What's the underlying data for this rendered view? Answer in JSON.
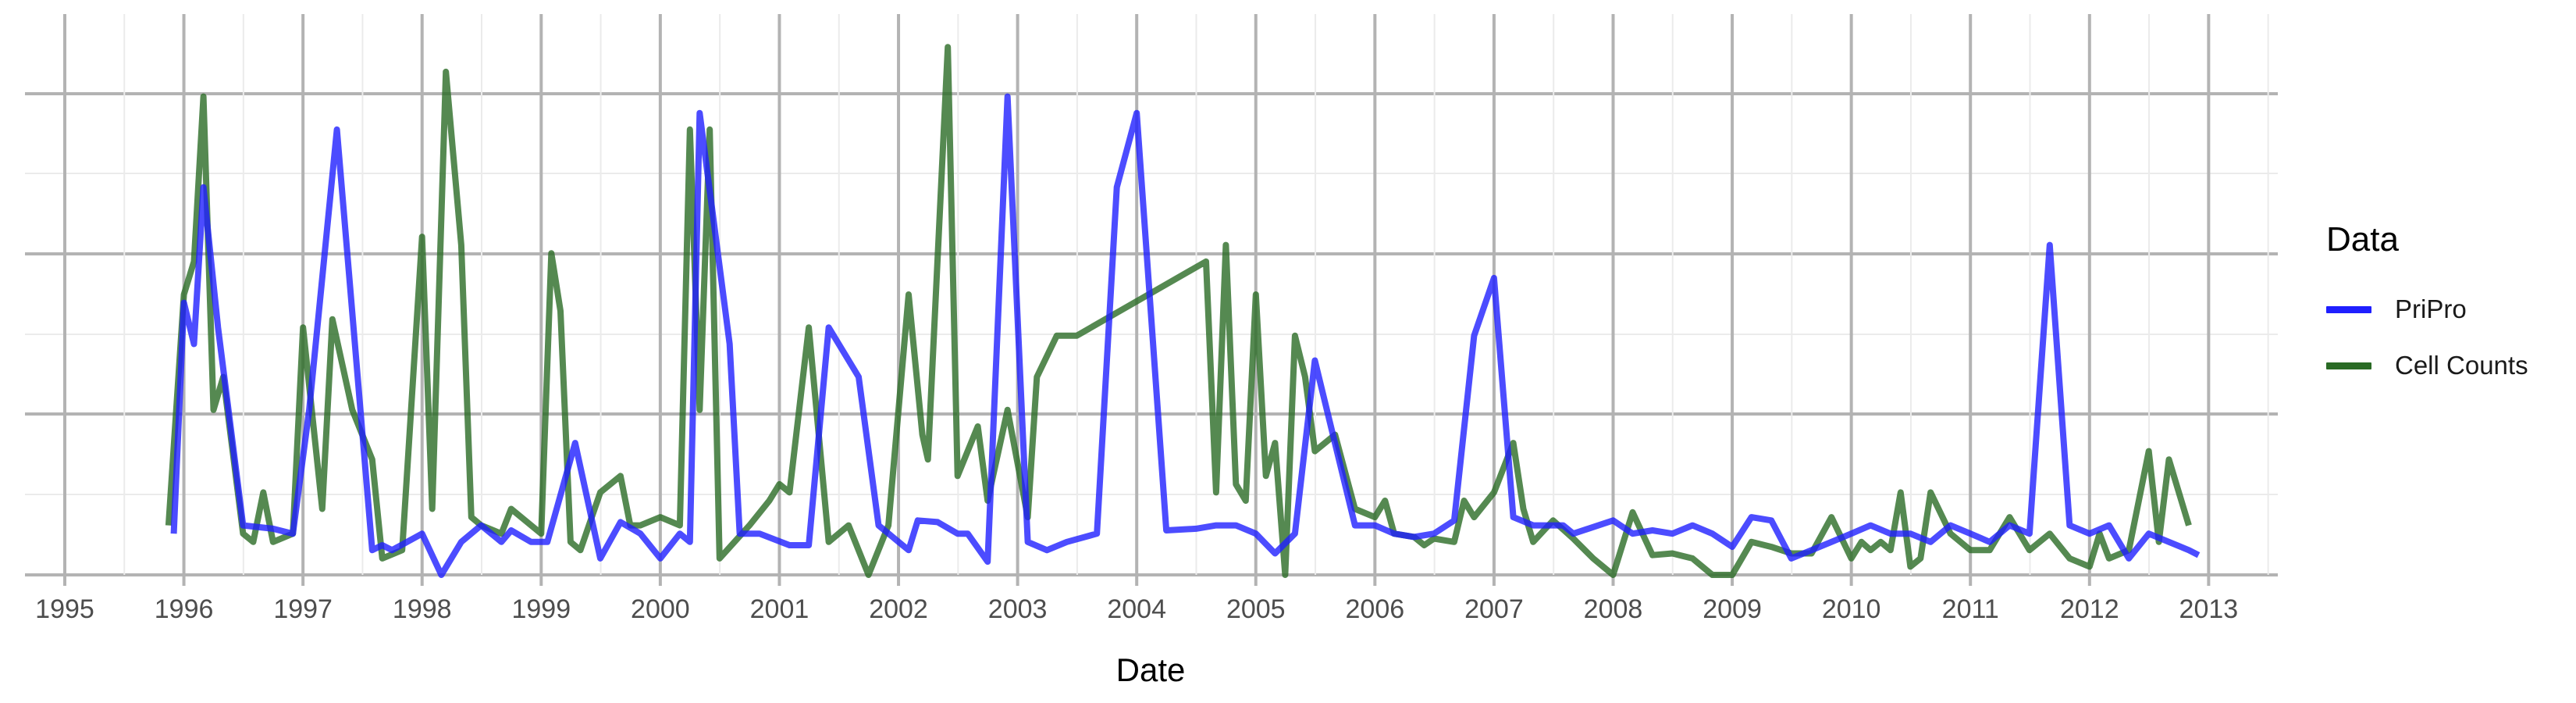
{
  "chart_data": {
    "type": "line",
    "xlabel": "Date",
    "ylabel": "",
    "x_ticks": [
      "1995",
      "1996",
      "1997",
      "1998",
      "1999",
      "2000",
      "2001",
      "2002",
      "2003",
      "2004",
      "2005",
      "2006",
      "2007",
      "2008",
      "2009",
      "2010",
      "2011",
      "2012",
      "2013"
    ],
    "xlim": [
      "1994-09-01",
      "2013-08-01"
    ],
    "ylim": [
      0,
      34
    ],
    "y_ticks_shown": false,
    "grid": true,
    "legend_title": "Data",
    "legend_placement": "right",
    "series": [
      {
        "name": "PriPro",
        "color": "#1f1fff",
        "points": [
          [
            "1995-12-01",
            2.5
          ],
          [
            "1996-01-01",
            16.5
          ],
          [
            "1996-02-01",
            14
          ],
          [
            "1996-03-01",
            23.5
          ],
          [
            "1996-04-15",
            15
          ],
          [
            "1996-07-01",
            3
          ],
          [
            "1996-10-01",
            2.8
          ],
          [
            "1996-12-01",
            2.5
          ],
          [
            "1997-01-20",
            10
          ],
          [
            "1997-04-15",
            27
          ],
          [
            "1997-08-01",
            1.5
          ],
          [
            "1997-09-01",
            1.8
          ],
          [
            "1997-10-01",
            1.5
          ],
          [
            "1998-01-01",
            2.5
          ],
          [
            "1998-03-01",
            0
          ],
          [
            "1998-05-01",
            2
          ],
          [
            "1998-07-01",
            3
          ],
          [
            "1998-09-01",
            2
          ],
          [
            "1998-10-01",
            2.7
          ],
          [
            "1998-12-01",
            2
          ],
          [
            "1999-01-20",
            2
          ],
          [
            "1999-04-15",
            8
          ],
          [
            "1999-07-01",
            1
          ],
          [
            "1999-09-01",
            3.2
          ],
          [
            "1999-11-01",
            2.5
          ],
          [
            "2000-01-01",
            1
          ],
          [
            "2000-03-01",
            2.5
          ],
          [
            "2000-04-01",
            2
          ],
          [
            "2000-05-01",
            28
          ],
          [
            "2000-08-01",
            14
          ],
          [
            "2000-09-01",
            2.5
          ],
          [
            "2000-11-01",
            2.5
          ],
          [
            "2001-02-01",
            1.8
          ],
          [
            "2001-04-01",
            1.8
          ],
          [
            "2001-06-01",
            15
          ],
          [
            "2001-09-01",
            12
          ],
          [
            "2001-11-01",
            3
          ],
          [
            "2002-02-01",
            1.5
          ],
          [
            "2002-03-01",
            3.3
          ],
          [
            "2002-05-01",
            3.2
          ],
          [
            "2002-07-01",
            2.5
          ],
          [
            "2002-08-01",
            2.5
          ],
          [
            "2002-10-01",
            0.8
          ],
          [
            "2002-12-01",
            29
          ],
          [
            "2003-02-01",
            2
          ],
          [
            "2003-04-01",
            1.5
          ],
          [
            "2003-06-01",
            2
          ],
          [
            "2003-09-01",
            2.5
          ],
          [
            "2003-11-01",
            23.5
          ],
          [
            "2004-01-01",
            28
          ],
          [
            "2004-04-01",
            2.7
          ],
          [
            "2004-07-01",
            2.8
          ],
          [
            "2004-09-01",
            3
          ],
          [
            "2004-11-01",
            3
          ],
          [
            "2005-01-01",
            2.5
          ],
          [
            "2005-03-01",
            1.3
          ],
          [
            "2005-05-01",
            2.5
          ],
          [
            "2005-07-01",
            13
          ],
          [
            "2005-11-01",
            3
          ],
          [
            "2006-01-01",
            3
          ],
          [
            "2006-03-01",
            2.5
          ],
          [
            "2006-05-01",
            2.3
          ],
          [
            "2006-07-01",
            2.5
          ],
          [
            "2006-09-01",
            3.3
          ],
          [
            "2006-11-01",
            14.5
          ],
          [
            "2007-01-01",
            18
          ],
          [
            "2007-03-01",
            3.5
          ],
          [
            "2007-05-01",
            3
          ],
          [
            "2007-08-01",
            3
          ],
          [
            "2007-09-01",
            2.5
          ],
          [
            "2008-01-01",
            3.3
          ],
          [
            "2008-03-01",
            2.5
          ],
          [
            "2008-05-01",
            2.7
          ],
          [
            "2008-07-01",
            2.5
          ],
          [
            "2008-09-01",
            3
          ],
          [
            "2008-11-01",
            2.5
          ],
          [
            "2009-01-01",
            1.7
          ],
          [
            "2009-03-01",
            3.5
          ],
          [
            "2009-05-01",
            3.3
          ],
          [
            "2009-07-01",
            1
          ],
          [
            "2009-09-01",
            1.5
          ],
          [
            "2009-11-01",
            2
          ],
          [
            "2010-01-01",
            2.5
          ],
          [
            "2010-03-01",
            3
          ],
          [
            "2010-05-01",
            2.5
          ],
          [
            "2010-07-01",
            2.5
          ],
          [
            "2010-09-01",
            2
          ],
          [
            "2010-11-01",
            3
          ],
          [
            "2011-01-01",
            2.5
          ],
          [
            "2011-03-01",
            2
          ],
          [
            "2011-05-01",
            3
          ],
          [
            "2011-07-01",
            2.5
          ],
          [
            "2011-09-01",
            20
          ],
          [
            "2011-11-01",
            3
          ],
          [
            "2012-01-01",
            2.5
          ],
          [
            "2012-03-01",
            3
          ],
          [
            "2012-05-01",
            1
          ],
          [
            "2012-07-01",
            2.5
          ],
          [
            "2012-09-01",
            2
          ],
          [
            "2012-11-01",
            1.5
          ],
          [
            "2012-12-01",
            1.2
          ]
        ]
      },
      {
        "name": "Cell Counts",
        "color": "#2a6b25",
        "points": [
          [
            "1995-11-15",
            3
          ],
          [
            "1996-01-01",
            17
          ],
          [
            "1996-02-01",
            19
          ],
          [
            "1996-03-01",
            29
          ],
          [
            "1996-04-01",
            10
          ],
          [
            "1996-05-01",
            12
          ],
          [
            "1996-07-01",
            2.5
          ],
          [
            "1996-08-01",
            2
          ],
          [
            "1996-09-01",
            5
          ],
          [
            "1996-10-01",
            2
          ],
          [
            "1996-12-01",
            2.5
          ],
          [
            "1997-01-01",
            15
          ],
          [
            "1997-03-01",
            4
          ],
          [
            "1997-04-01",
            15.5
          ],
          [
            "1997-06-01",
            10
          ],
          [
            "1997-08-01",
            7
          ],
          [
            "1997-09-01",
            1
          ],
          [
            "1997-11-01",
            1.5
          ],
          [
            "1998-01-01",
            20.5
          ],
          [
            "1998-02-01",
            4
          ],
          [
            "1998-03-15",
            30.5
          ],
          [
            "1998-05-01",
            20
          ],
          [
            "1998-06-01",
            3.5
          ],
          [
            "1998-07-01",
            3
          ],
          [
            "1998-09-01",
            2.5
          ],
          [
            "1998-10-01",
            4
          ],
          [
            "1999-01-01",
            2.5
          ],
          [
            "1999-02-01",
            19.5
          ],
          [
            "1999-03-01",
            16
          ],
          [
            "1999-04-01",
            2
          ],
          [
            "1999-05-01",
            1.5
          ],
          [
            "1999-07-01",
            5
          ],
          [
            "1999-09-01",
            6
          ],
          [
            "1999-10-01",
            3
          ],
          [
            "1999-11-01",
            3
          ],
          [
            "2000-01-01",
            3.5
          ],
          [
            "2000-03-01",
            3
          ],
          [
            "2000-04-01",
            27
          ],
          [
            "2000-05-01",
            10
          ],
          [
            "2000-06-01",
            27
          ],
          [
            "2000-07-01",
            1
          ],
          [
            "2000-10-01",
            3
          ],
          [
            "2000-12-01",
            4.5
          ],
          [
            "2001-01-01",
            5.5
          ],
          [
            "2001-02-01",
            5
          ],
          [
            "2001-04-01",
            15
          ],
          [
            "2001-06-01",
            2
          ],
          [
            "2001-08-01",
            3
          ],
          [
            "2001-10-01",
            0
          ],
          [
            "2001-12-01",
            3
          ],
          [
            "2002-02-01",
            17
          ],
          [
            "2002-03-15",
            8.5
          ],
          [
            "2002-04-01",
            7
          ],
          [
            "2002-06-01",
            32
          ],
          [
            "2002-07-01",
            6
          ],
          [
            "2002-09-01",
            9
          ],
          [
            "2002-10-01",
            4.5
          ],
          [
            "2002-12-01",
            10
          ],
          [
            "2003-02-01",
            3.5
          ],
          [
            "2003-03-01",
            12
          ],
          [
            "2003-05-01",
            14.5
          ],
          [
            "2003-07-01",
            14.5
          ],
          [
            "2004-08-01",
            19
          ],
          [
            "2004-09-01",
            5
          ],
          [
            "2004-10-01",
            20
          ],
          [
            "2004-11-01",
            5.5
          ],
          [
            "2004-12-01",
            4.5
          ],
          [
            "2005-01-01",
            17
          ],
          [
            "2005-02-01",
            6
          ],
          [
            "2005-03-01",
            8
          ],
          [
            "2005-04-01",
            0
          ],
          [
            "2005-05-01",
            14.5
          ],
          [
            "2005-06-01",
            12
          ],
          [
            "2005-07-01",
            7.5
          ],
          [
            "2005-09-01",
            8.5
          ],
          [
            "2005-11-01",
            4
          ],
          [
            "2006-01-01",
            3.5
          ],
          [
            "2006-02-01",
            4.5
          ],
          [
            "2006-03-01",
            2.5
          ],
          [
            "2006-05-01",
            2.3
          ],
          [
            "2006-06-01",
            1.8
          ],
          [
            "2006-07-01",
            2.2
          ],
          [
            "2006-09-01",
            2
          ],
          [
            "2006-10-01",
            4.5
          ],
          [
            "2006-11-01",
            3.5
          ],
          [
            "2007-01-01",
            5
          ],
          [
            "2007-03-01",
            8
          ],
          [
            "2007-04-01",
            4
          ],
          [
            "2007-05-01",
            2
          ],
          [
            "2007-07-01",
            3.3
          ],
          [
            "2007-09-01",
            2.2
          ],
          [
            "2007-11-01",
            1
          ],
          [
            "2008-01-01",
            0
          ],
          [
            "2008-03-01",
            3.8
          ],
          [
            "2008-05-01",
            1.2
          ],
          [
            "2008-07-01",
            1.3
          ],
          [
            "2008-09-01",
            1
          ],
          [
            "2008-11-01",
            0
          ],
          [
            "2009-01-01",
            0
          ],
          [
            "2009-03-01",
            2
          ],
          [
            "2009-05-01",
            1.7
          ],
          [
            "2009-07-01",
            1.3
          ],
          [
            "2009-09-01",
            1.3
          ],
          [
            "2009-11-01",
            3.5
          ],
          [
            "2010-01-01",
            1
          ],
          [
            "2010-02-01",
            2
          ],
          [
            "2010-03-01",
            1.5
          ],
          [
            "2010-04-01",
            2
          ],
          [
            "2010-05-01",
            1.5
          ],
          [
            "2010-06-01",
            5
          ],
          [
            "2010-07-01",
            0.5
          ],
          [
            "2010-08-01",
            1
          ],
          [
            "2010-09-01",
            5
          ],
          [
            "2010-11-01",
            2.5
          ],
          [
            "2011-01-01",
            1.5
          ],
          [
            "2011-03-01",
            1.5
          ],
          [
            "2011-05-01",
            3.5
          ],
          [
            "2011-07-01",
            1.5
          ],
          [
            "2011-09-01",
            2.5
          ],
          [
            "2011-11-01",
            1
          ],
          [
            "2012-01-01",
            0.5
          ],
          [
            "2012-02-01",
            2.5
          ],
          [
            "2012-03-01",
            1
          ],
          [
            "2012-05-01",
            1.5
          ],
          [
            "2012-07-01",
            7.5
          ],
          [
            "2012-08-01",
            2
          ],
          [
            "2012-09-01",
            7
          ],
          [
            "2012-11-01",
            3
          ]
        ]
      }
    ]
  }
}
